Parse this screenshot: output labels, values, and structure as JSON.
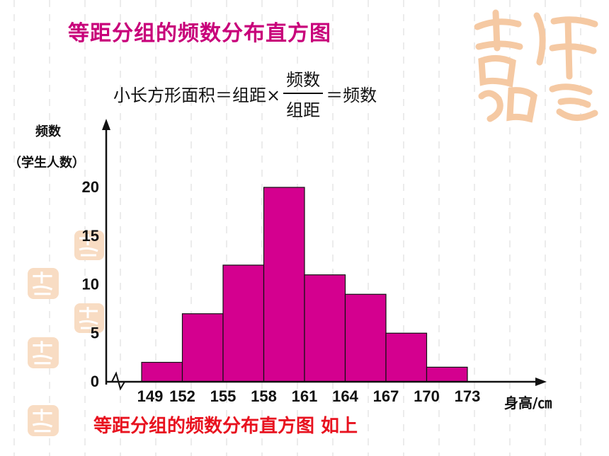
{
  "slide": {
    "title": "等距分组的频数分布直方图",
    "caption": "等距分组的频数分布直方图 如上"
  },
  "formula": {
    "lhs": "小长方形面积＝组距×",
    "frac_num": "频数",
    "frac_den": "组距",
    "rhs": "＝频数"
  },
  "decoration": {
    "seal_text": "吉祥如意",
    "seal_color": "#f5c9a3",
    "grid_color": "#d8d8d8"
  },
  "chart_data": {
    "type": "bar",
    "bar_color": "#d4008f",
    "ylabel_line1": "频数",
    "ylabel_line2": "（学生人数）",
    "xlabel": "身高/㎝",
    "bin_edges": [
      149,
      152,
      155,
      158,
      161,
      164,
      167,
      170,
      173
    ],
    "x_tick_labels": [
      "149",
      "152",
      "155",
      "158",
      "161",
      "164",
      "167",
      "170",
      "173"
    ],
    "values": [
      2,
      7,
      12,
      20,
      11,
      9,
      5,
      1.5
    ],
    "y_ticks": [
      0,
      5,
      10,
      15,
      20
    ],
    "ylim": [
      0,
      20
    ],
    "grid": false,
    "axis_break": true
  }
}
